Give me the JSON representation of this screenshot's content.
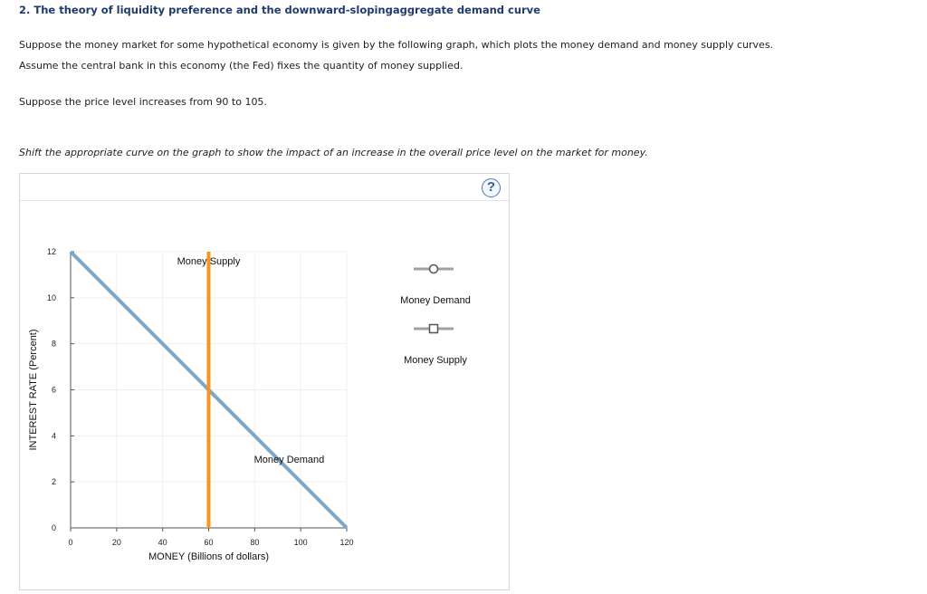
{
  "header": {
    "title": "2. The theory of liquidity preference and the downward-slopingaggregate demand curve"
  },
  "intro": {
    "line1": "Suppose the money market for some hypothetical economy is given by the following graph, which plots the money demand and money supply curves.",
    "line2": "Assume the central bank in this economy (the Fed) fixes the quantity of money supplied.",
    "price_change": "Suppose the price level increases from 90 to 105."
  },
  "instruction": "Shift the appropriate curve on the graph to show the impact of an increase in the overall price level on the market for money.",
  "help": {
    "label": "?"
  },
  "legend": {
    "items": [
      {
        "label": "Money Demand",
        "marker": "circle",
        "color": "#9aa3ab",
        "icon": "circle-marker-icon"
      },
      {
        "label": "Money Supply",
        "marker": "square",
        "color": "#9aa3ab",
        "icon": "square-marker-icon"
      }
    ]
  },
  "chart_data": {
    "type": "line",
    "xlabel": "MONEY (Billions of dollars)",
    "ylabel": "INTEREST RATE (Percent)",
    "xlim": [
      0,
      120
    ],
    "ylim": [
      0,
      12
    ],
    "x_ticks": [
      0,
      20,
      40,
      60,
      80,
      100,
      120
    ],
    "y_ticks": [
      0,
      2,
      4,
      6,
      8,
      10,
      12
    ],
    "grid": true,
    "series": [
      {
        "name": "Money Demand",
        "color": "#7ea7c8",
        "points": [
          [
            0,
            12
          ],
          [
            120,
            0
          ]
        ],
        "label": "Money Demand",
        "label_at": [
          95,
          3
        ]
      },
      {
        "name": "Money Supply",
        "color": "#f7941d",
        "points": [
          [
            60,
            0
          ],
          [
            60,
            12
          ]
        ],
        "label": "Money Supply",
        "label_at": [
          60,
          11.6
        ]
      }
    ]
  }
}
